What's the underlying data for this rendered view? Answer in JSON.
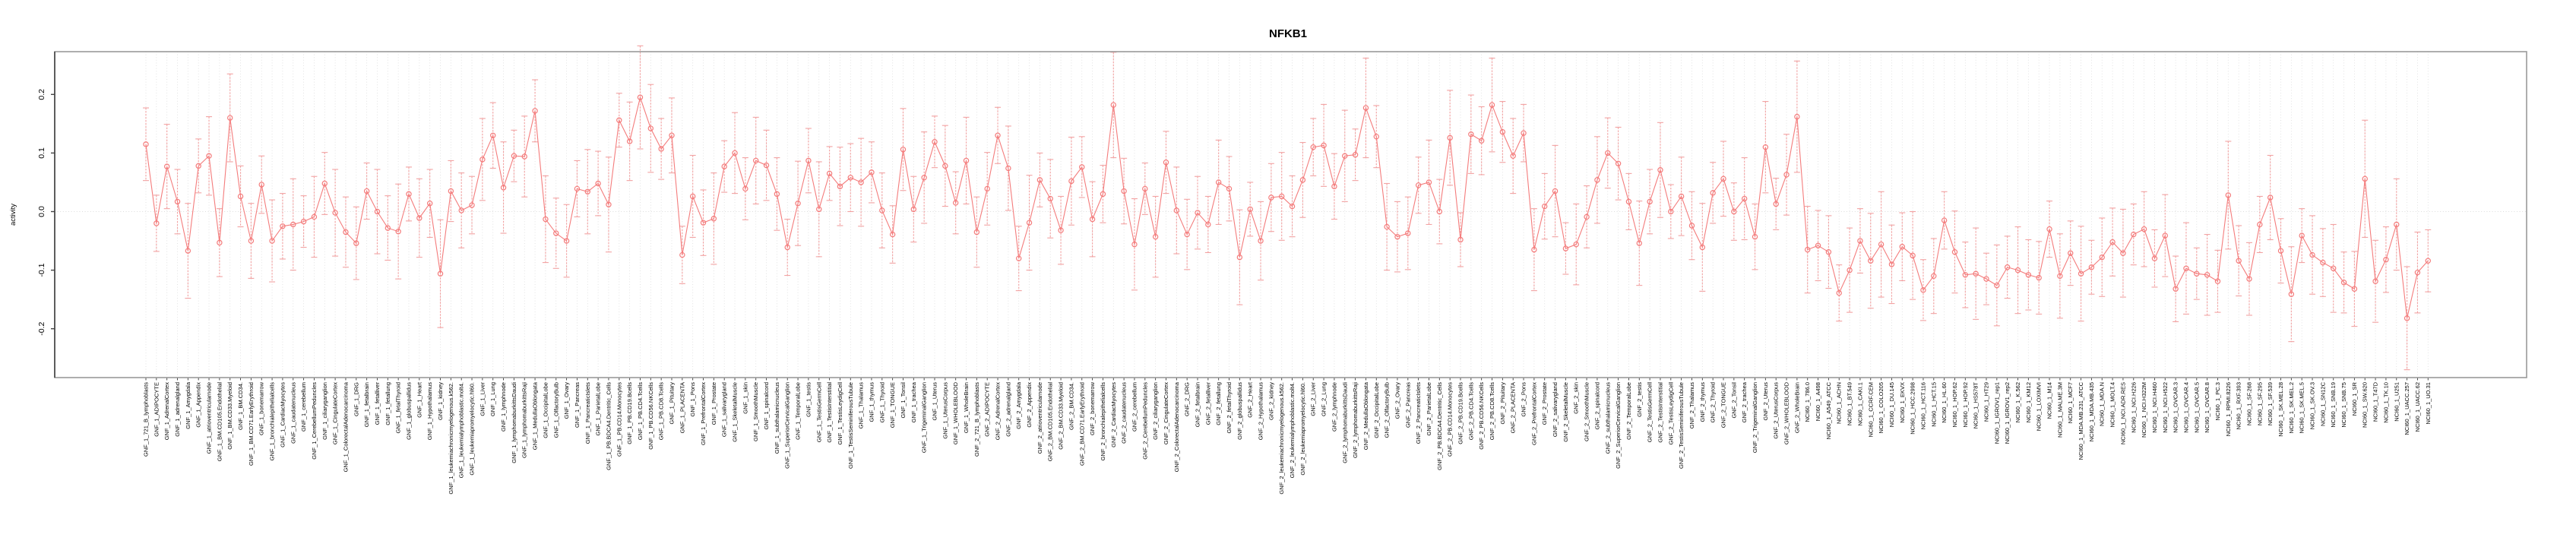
{
  "title": "NFKB1",
  "chart_data": {
    "type": "line",
    "title": "NFKB1",
    "xlabel": "",
    "ylabel": "activity",
    "ylim": [
      -0.27,
      0.27
    ],
    "yticks": [
      0.2,
      0.1,
      0.0,
      -0.1,
      -0.2
    ],
    "ytick_labels": [
      "0.2",
      "0.1",
      "0.0",
      "-0.1",
      "-0.2"
    ],
    "grid": "dotted vertical line per sample; dotted horizontal line at 0",
    "legend_position": "none",
    "marker": "open-circle with error bars",
    "series_color": "#f47c7c",
    "errorbar_color": "#f2a2a2",
    "box_color": "#9a9a9a",
    "axis_color": "#444444",
    "grid_color": "#dcdcdc",
    "gnf_prefixes": [
      "GNF_1_",
      "GNF_2_"
    ],
    "gnf_tissues": [
      "721_B_lymphoblasts",
      "ADIPOCYTE",
      "AdrenalCortex",
      "adrenalgland",
      "Amygdala",
      "Appendix",
      "atrioventricularnode",
      "BM.CD105.Endothelial",
      "BM.CD33.Myeloid",
      "BM.CD34.",
      "BM.CD71.EarlyErythroid",
      "bonemarrow",
      "bronchialepithelialcells",
      "CardiacMyocytes",
      "caudatenucleus",
      "cerebellum",
      "CerebellumPeduncles",
      "ciliaryganglion",
      "CingulateCortex",
      "ColorectalAdenocarcinoma",
      "DRG",
      "fetalbrain",
      "fetalliver",
      "fetallung",
      "fetalThyroid",
      "globuspallidus",
      "Heart",
      "Hypothalamus",
      "kidney",
      "leukemiachronicmyelogenous.k562.",
      "leukemialymphoblastic.molt4.",
      "leukemiapromyelocytic.hl60.",
      "Liver",
      "Lung",
      "lymphnode",
      "lymphomaburkittsDaudi",
      "lymphomaburkittsRaji",
      "MedullaOblongata",
      "OccipitalLobe",
      "OlfactoryBulb",
      "Ovary",
      "Pancreas",
      "PancreaticIslets",
      "ParietalLobe",
      "PB.BDCA4.Dentritic_Cells",
      "PB.CD14.Monocytes",
      "PB.CD19.Bcells",
      "PB.CD4.Tcells",
      "PB.CD56.NKCells",
      "PB.CD8.Tcells",
      "Pituitary",
      "PLACENTA",
      "Pons",
      "PrefrontalCortex",
      "Prostate",
      "salivarygland",
      "SkeletalMuscle",
      "skin",
      "SmoothMuscle",
      "spinalcord",
      "subthalamicnucleus",
      "SuperiorCervicalGanglion",
      "TemporalLobe",
      "testis",
      "TestisGermCell",
      "TestisInterstitial",
      "TestisLeydigCell",
      "TestisSeminiferousTubule",
      "Thalamus",
      "thymus",
      "Thyroid",
      "TONGUE",
      "Tonsil",
      "trachea",
      "TrigeminalGanglion",
      "Uterus",
      "UterusCorpus",
      "WHOLEBLOOD",
      "WholeBrain"
    ],
    "nci60_prefix": "NCI60_1_",
    "nci60_cells": [
      "786.0",
      "A498",
      "A549_ATCC",
      "ACHN",
      "BT.549",
      "CAKI.1",
      "CCRF.CEM",
      "COLO205",
      "DU.145",
      "EKVX",
      "HCC.2998",
      "HCT.116",
      "HCT.15",
      "HL.60",
      "HOP.62",
      "HOP.92",
      "HS578T",
      "HT29",
      "IGROV1_rep1",
      "IGROV1_rep2",
      "K.562",
      "KM12",
      "LOXIMVI",
      "M14",
      "MALME.3M",
      "MCF7",
      "MDA.MB.231_ATCC",
      "MDA.MB.435",
      "MDA.N",
      "MOLT.4",
      "NCI.ADR.RES",
      "NCI.H226",
      "NCI.H322M",
      "NCI.H460",
      "NCI.H522",
      "OVCAR.3",
      "OVCAR.4",
      "OVCAR.5",
      "OVCAR.8",
      "PC.3",
      "RPMI.8226",
      "RXF.393",
      "SF.268",
      "SF.295",
      "SF.539",
      "SK.MEL.28",
      "SK.MEL.2",
      "SK.MEL.5",
      "SK.OV.3",
      "SN12C",
      "SNB.19",
      "SNB.75",
      "SR",
      "SW.620",
      "T47D",
      "TK.10",
      "U251",
      "UACC.257",
      "UACC.62",
      "UO.31"
    ],
    "values": [
      0.115,
      -0.02,
      0.077,
      0.017,
      -0.067,
      0.078,
      0.095,
      -0.053,
      0.16,
      0.026,
      -0.05,
      0.046,
      -0.05,
      -0.025,
      -0.022,
      -0.017,
      -0.009,
      0.048,
      -0.002,
      -0.035,
      -0.054,
      0.035,
      0.0,
      -0.028,
      -0.034,
      0.03,
      -0.011,
      0.014,
      -0.106,
      0.035,
      0.002,
      0.011,
      0.089,
      0.13,
      0.041,
      0.095,
      0.094,
      0.172,
      -0.013,
      -0.037,
      -0.05,
      0.039,
      0.034,
      0.048,
      0.012,
      0.156,
      0.12,
      0.195,
      0.142,
      0.107,
      0.13,
      -0.074,
      0.026,
      -0.019,
      -0.012,
      0.077,
      0.1,
      0.039,
      0.087,
      0.079,
      0.03,
      -0.061,
      0.014,
      0.087,
      0.004,
      0.065,
      0.043,
      0.058,
      0.05,
      0.067,
      0.002,
      -0.039,
      0.106,
      0.004,
      0.058,
      0.119,
      0.078,
      0.015,
      0.087,
      -0.035,
      0.039,
      0.13,
      0.074,
      -0.08,
      -0.019,
      0.054,
      0.022,
      -0.032,
      0.052,
      0.076,
      -0.013,
      0.03,
      0.182,
      0.035,
      -0.056,
      0.039,
      -0.043,
      0.084,
      0.002,
      -0.039,
      -0.002,
      -0.022,
      0.05,
      0.039,
      -0.078,
      0.004,
      -0.05,
      0.024,
      0.026,
      0.009,
      0.054,
      0.11,
      0.113,
      0.043,
      0.095,
      0.097,
      0.177,
      0.128,
      -0.026,
      -0.043,
      -0.037,
      0.045,
      0.05,
      0.0,
      0.126,
      -0.048,
      0.132,
      0.121,
      0.182,
      0.136,
      0.095,
      0.134,
      -0.065,
      0.009,
      0.035,
      -0.063,
      -0.056,
      -0.009,
      0.054,
      0.1,
      0.082,
      0.017,
      -0.054,
      0.017,
      0.071,
      0.0,
      0.026,
      -0.024,
      -0.061,
      0.032,
      0.056,
      0.0,
      0.022,
      -0.043,
      0.11,
      0.013,
      0.063,
      0.162,
      -0.065,
      -0.058,
      -0.069,
      -0.139,
      -0.1,
      -0.05,
      -0.084,
      -0.056,
      -0.09,
      -0.06,
      -0.075,
      -0.134,
      -0.11,
      -0.015,
      -0.069,
      -0.108,
      -0.106,
      -0.115,
      -0.126,
      -0.095,
      -0.1,
      -0.108,
      -0.113,
      -0.03,
      -0.11,
      -0.071,
      -0.106,
      -0.095,
      -0.078,
      -0.052,
      -0.071,
      -0.039,
      -0.03,
      -0.08,
      -0.041,
      -0.132,
      -0.097,
      -0.106,
      -0.108,
      -0.119,
      0.028,
      -0.084,
      -0.115,
      -0.022,
      0.024,
      -0.067,
      -0.141,
      -0.041,
      -0.074,
      -0.087,
      -0.097,
      -0.121,
      -0.132,
      0.056,
      -0.119,
      -0.082,
      -0.022,
      -0.182,
      -0.104,
      -0.084
    ],
    "err_cycle": [
      0.062,
      0.048,
      0.072,
      0.055,
      0.081,
      0.046,
      0.067,
      0.058,
      0.075,
      0.052,
      0.064,
      0.049,
      0.07,
      0.056,
      0.078,
      0.044,
      0.069,
      0.053,
      0.074,
      0.06
    ],
    "err_overrides": {
      "28": 0.092,
      "47": 0.088,
      "92": 0.09,
      "116": 0.085,
      "128": 0.08,
      "157": 0.095,
      "165": 0.09,
      "198": 0.092,
      "211": 0.1,
      "215": 0.088
    }
  }
}
